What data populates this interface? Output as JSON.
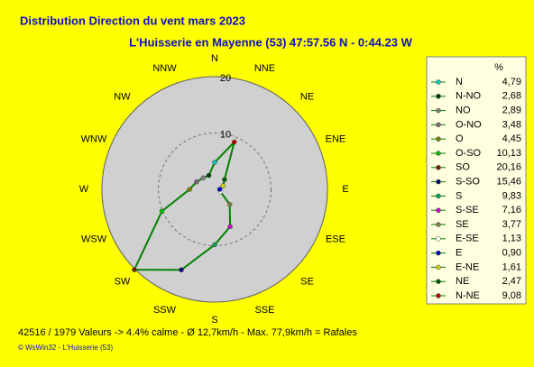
{
  "chart_data": {
    "type": "windrose",
    "title": "Distribution Direction du vent   mars 2023",
    "subtitle": "L'Huisserie en Mayenne (53) 47:57.56 N - 0:44.23 W",
    "compass_labels": [
      "N",
      "NNE",
      "NE",
      "ENE",
      "E",
      "ESE",
      "SE",
      "SSE",
      "S",
      "SSW",
      "SW",
      "WSW",
      "W",
      "WNW",
      "NW",
      "NNW"
    ],
    "legend_title": "%",
    "categories": [
      "N",
      "N-NO",
      "NO",
      "O-NO",
      "O",
      "O-SO",
      "SO",
      "S-SO",
      "S",
      "S-SE",
      "SE",
      "E-SE",
      "E",
      "E-NE",
      "NE",
      "N-NE"
    ],
    "values": [
      4.79,
      2.68,
      2.89,
      3.48,
      4.45,
      10.13,
      20.16,
      15.46,
      9.83,
      7.16,
      3.77,
      1.13,
      0.9,
      1.61,
      2.47,
      9.08
    ],
    "value_labels": [
      "4,79",
      "2,68",
      "2,89",
      "3,48",
      "4,45",
      "10,13",
      "20,16",
      "15,46",
      "9,83",
      "7,16",
      "3,77",
      "1,13",
      "0,90",
      "1,61",
      "2,47",
      "9,08"
    ],
    "colors": [
      "#00c8c8",
      "#003c00",
      "#808080",
      "#806080",
      "#808000",
      "#00c000",
      "#7a2000",
      "#000080",
      "#00a060",
      "#d000d0",
      "#808040",
      "#ffffff",
      "#0000d0",
      "#d0d000",
      "#006000",
      "#c00000"
    ],
    "line_color": "#008000",
    "ylim": [
      0,
      20
    ],
    "yticks": [
      10,
      20
    ],
    "footer": "42516 / 1979 Valeurs  -> 4.4% calme   -   Ø 12,7km/h  -  Max. 77,9km/h = Rafales",
    "credit": "© WsWin32  -  L'Huisserie (53)"
  }
}
